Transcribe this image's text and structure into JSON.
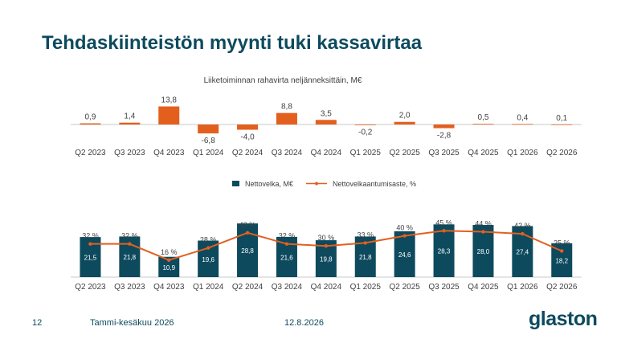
{
  "page": {
    "title": "Tehdaskiinteistön myynti tuki kassavirtaa",
    "page_number": "12",
    "period": "Tammi-kesäkuu 2026",
    "date": "12.8.2026",
    "logo": "glaston"
  },
  "colors": {
    "orange": "#e35f1e",
    "teal": "#0d4a5e",
    "axis": "#c8c8c8",
    "text": "#404040"
  },
  "chart_data": [
    {
      "type": "bar",
      "title": "Liiketoiminnan rahavirta neljänneksittäin, M€",
      "categories": [
        "Q2 2023",
        "Q3 2023",
        "Q4 2023",
        "Q1 2024",
        "Q2 2024",
        "Q3 2024",
        "Q4 2024",
        "Q1 2025",
        "Q2 2025",
        "Q3 2025",
        "Q4 2025",
        "Q1 2026",
        "Q2 2026"
      ],
      "values": [
        0.9,
        1.4,
        13.8,
        -6.8,
        -4.0,
        8.8,
        3.5,
        -0.2,
        2.0,
        -2.8,
        0.5,
        0.4,
        0.1
      ],
      "value_labels": [
        "0,9",
        "1,4",
        "13,8",
        "-6,8",
        "-4,0",
        "8,8",
        "3,5",
        "-0,2",
        "2,0",
        "-2,8",
        "0,5",
        "0,4",
        "0,1"
      ],
      "color": "#e35f1e",
      "grid": false
    },
    {
      "type": "bar",
      "categories": [
        "Q2 2023",
        "Q3 2023",
        "Q4 2023",
        "Q1 2024",
        "Q2 2024",
        "Q3 2024",
        "Q4 2024",
        "Q1 2025",
        "Q2 2025",
        "Q3 2025",
        "Q4 2025",
        "Q1 2026",
        "Q2 2026"
      ],
      "legend_position": "top-center",
      "grid": false,
      "series": [
        {
          "name": "Nettovelka, M€",
          "type": "bar",
          "color": "#0d4a5e",
          "values": [
            21.5,
            21.8,
            10.9,
            19.6,
            28.8,
            21.6,
            19.8,
            21.8,
            24.6,
            28.3,
            28.0,
            27.4,
            18.2
          ],
          "value_labels": [
            "21,5",
            "21,8",
            "10,9",
            "19,6",
            "28,8",
            "21,6",
            "19,8",
            "21,8",
            "24,6",
            "28,3",
            "28,0",
            "27,4",
            "18,2"
          ]
        },
        {
          "name": "Nettovelkaantumisaste, %",
          "type": "line",
          "color": "#e35f1e",
          "values": [
            32,
            32,
            16,
            28,
            43,
            32,
            30,
            33,
            40,
            45,
            44,
            42,
            25
          ],
          "value_labels": [
            "32 %",
            "32 %",
            "16 %",
            "28 %",
            "43 %",
            "32 %",
            "30 %",
            "33 %",
            "40 %",
            "45 %",
            "44 %",
            "42 %",
            "25 %"
          ]
        }
      ]
    }
  ]
}
